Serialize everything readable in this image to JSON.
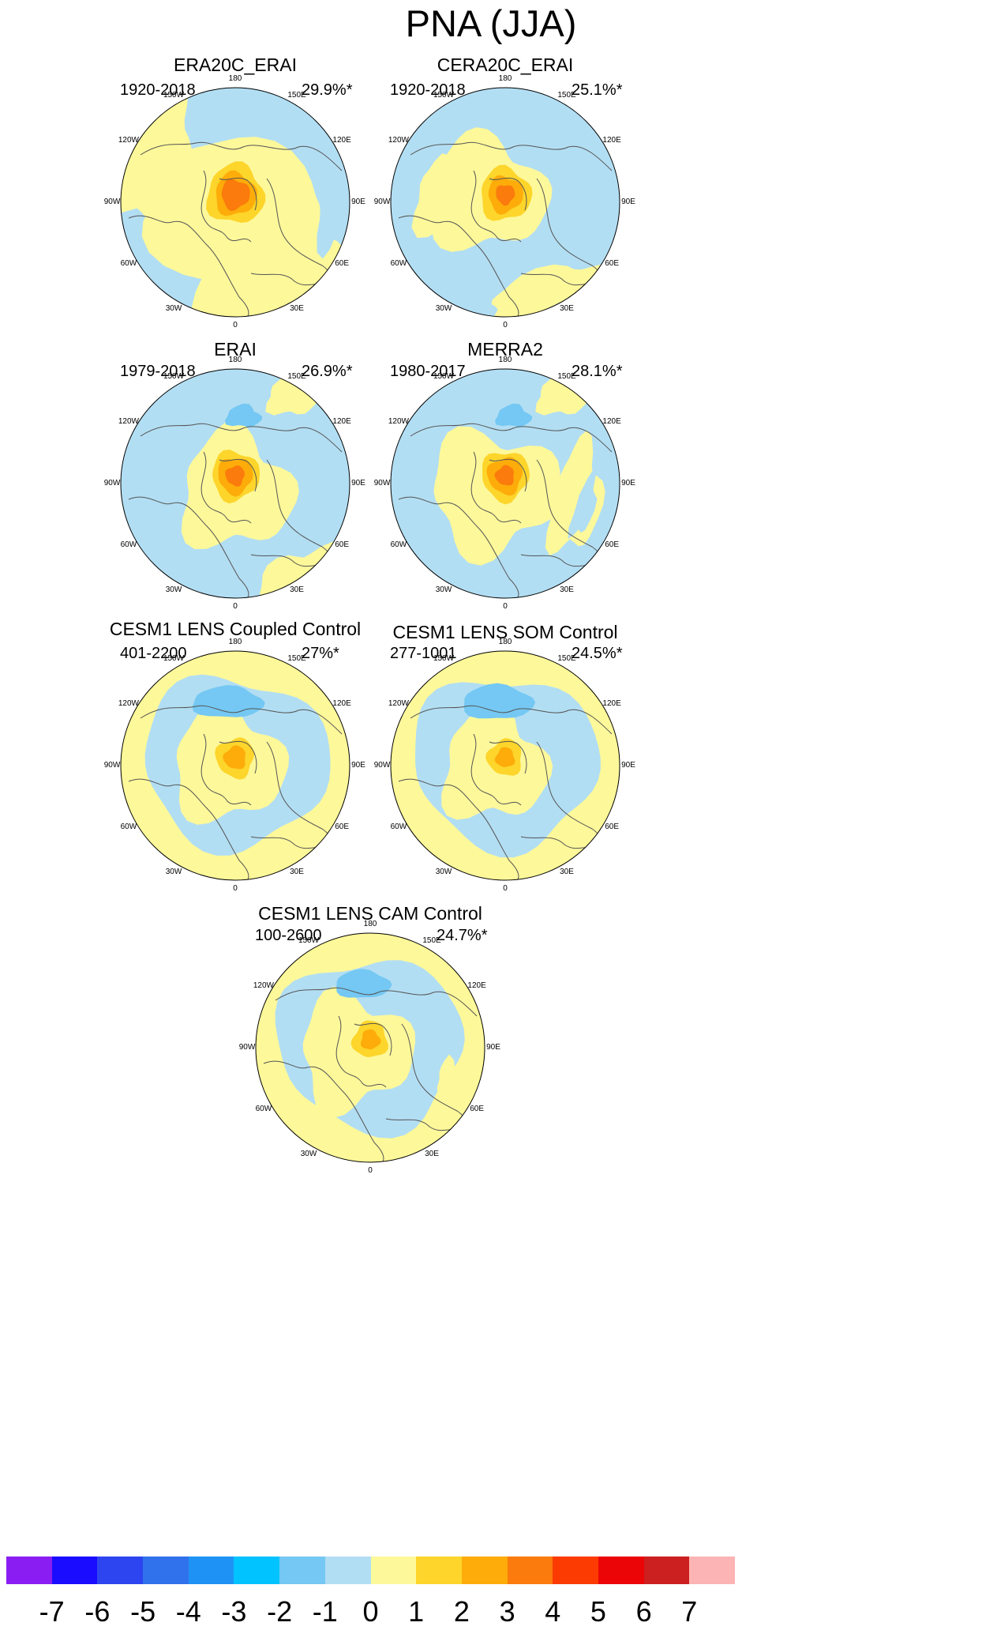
{
  "title": "PNA (JJA)",
  "panels": [
    {
      "name": "ERA20C_ERAI",
      "years": "1920-2018",
      "percent": "29.9%*"
    },
    {
      "name": "CERA20C_ERAI",
      "years": "1920-2018",
      "percent": "25.1%*"
    },
    {
      "name": "ERAI",
      "years": "1979-2018",
      "percent": "26.9%*"
    },
    {
      "name": "MERRA2",
      "years": "1980-2017",
      "percent": "28.1%*"
    },
    {
      "name": "CESM1 LENS Coupled Control",
      "years": "401-2200",
      "percent": "27%*"
    },
    {
      "name": "CESM1 LENS SOM Control",
      "years": "277-1001",
      "percent": "24.5%*"
    },
    {
      "name": "CESM1 LENS CAM Control",
      "years": "100-2600",
      "percent": "24.7%*"
    }
  ],
  "longitude_labels": {
    "north": "180",
    "nne": "150E",
    "ene": "120E",
    "east": "90E",
    "ese": "60E",
    "sse": "30E",
    "south": "0",
    "ssw": "30W",
    "wsw": "60W",
    "west": "90W",
    "wnw": "120W",
    "nnw": "150W"
  },
  "colorbar": {
    "colors": [
      "#8a1ef2",
      "#1a0cff",
      "#2c45f0",
      "#3072eb",
      "#1f93f5",
      "#00c3ff",
      "#74c8f3",
      "#b2def3",
      "#fdf89a",
      "#fdd52b",
      "#fdac0a",
      "#fb7b0c",
      "#fb3b02",
      "#ec0506",
      "#cc1f1f",
      "#fdb4b4"
    ],
    "labels": [
      "-7",
      "-6",
      "-5",
      "-4",
      "-3",
      "-2",
      "-1",
      "0",
      "1",
      "2",
      "3",
      "4",
      "5",
      "6",
      "7"
    ]
  },
  "palette": {
    "light_blue": "#b2def3",
    "blue": "#74c8f3",
    "yellow": "#fdf89a",
    "gold": "#fdd52b",
    "orange": "#fdac0a",
    "dark_orange": "#fb7b0c",
    "coast": "#555555"
  }
}
